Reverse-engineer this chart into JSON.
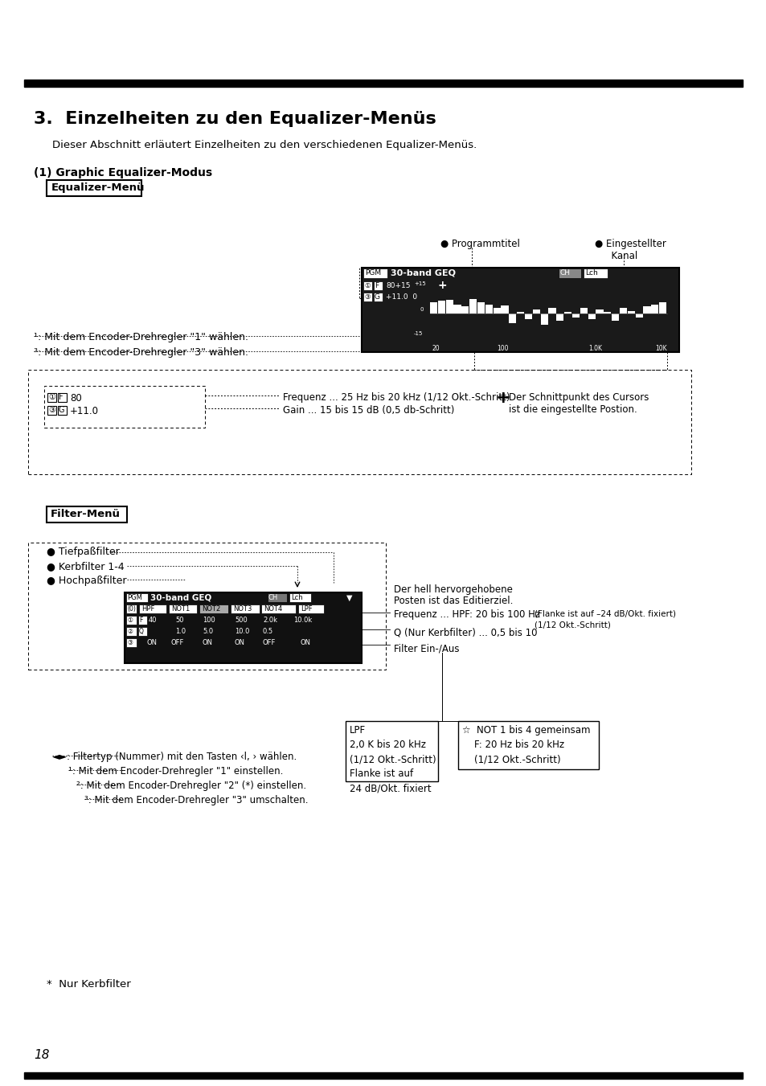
{
  "title": "3.  Einzelheiten zu den Equalizer-Menüs",
  "subtitle": "Dieser Abschnitt erläutert Einzelheiten zu den verschiedenen Equalizer-Menüs.",
  "section1_title": "(1) Graphic Equalizer-Modus",
  "box1_label": "Equalizer-Menü",
  "bullet_programmtitel": "● Programmtitel",
  "bullet_eingestellt1": "● Eingestellter",
  "bullet_eingestellt2": "  Kanal",
  "line1_label": "¹: Mit dem Encoder-Drehregler \"1\" wählen.",
  "line3_label": "³: Mit dem Encoder-Drehregler \"3\" wählen.",
  "freq_desc": "Frequenz ... 25 Hz bis 20 kHz (1/12 Okt.-Schritt)",
  "gain_desc": "Gain ... 15 bis 15 dB (0,5 db-Schritt)",
  "cursor_line1": "Der Schnittpunkt des Cursors",
  "cursor_line2": "ist die eingestellte Postion.",
  "filter_menu_label": "Filter-Menü",
  "bullet_tiefpass": "● Tiefpaßfilter",
  "bullet_kerbfilter": "● Kerbfilter 1-4",
  "bullet_hochpass": "● Hochpaßfilter",
  "edit_line1": "Der hell hervorgehobene",
  "edit_line2": "Posten ist das Editierziel.",
  "freq_hpf": "Frequenz ... HPF: 20 bis 100 Hz",
  "flanke_fixed": "(Flanke ist auf –24 dB/Okt. fixiert)",
  "okt_schritt": "(1/12 Okt.-Schritt)",
  "q_label": "Q (Nur Kerbfilter) ... 0,5 bis 10",
  "filter_einaus": "Filter Ein-/Aus",
  "lpf_box_text": "LPF\n2,0 K bis 20 kHz\n(1/12 Okt.-Schritt)\nFlanke ist auf\n24 dB/Okt. fixiert",
  "not_box_text": "☆  NOT 1 bis 4 gemeinsam\n    F: 20 Hz bis 20 kHz\n    (1/12 Okt.-Schritt)",
  "filter_key1": "◄►: Filtertyp (Nummer) mit den Tasten ‹l, › wählen.",
  "filter_key2": "¹: Mit dem Encoder-Drehregler \"1\" einstellen.",
  "filter_key3": "²: Mit dem Encoder-Drehregler \"2\" (*) einstellen.",
  "filter_key4": "³: Mit dem Encoder-Drehregler \"3\" umschalten.",
  "footnote": "*  Nur Kerbfilter",
  "page_num": "18",
  "bg_color": "#ffffff",
  "text_color": "#000000"
}
